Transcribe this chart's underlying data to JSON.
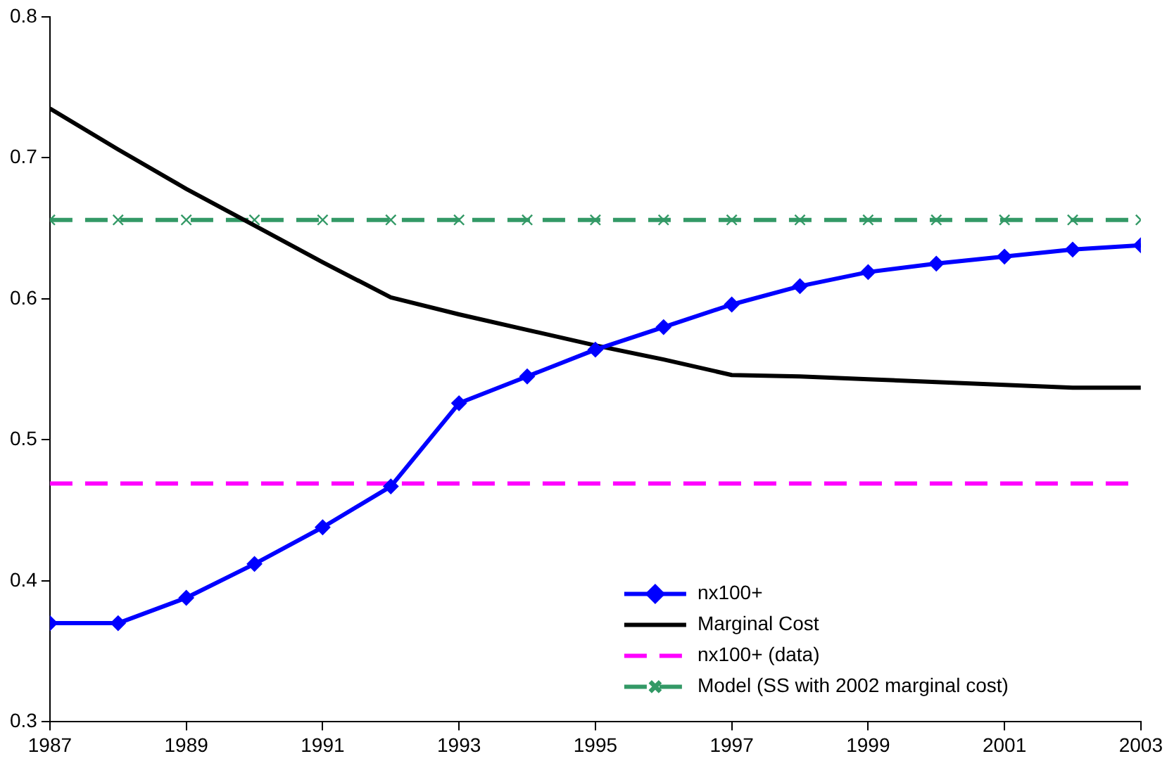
{
  "chart_data": {
    "type": "line",
    "x": [
      1987,
      1988,
      1989,
      1990,
      1991,
      1992,
      1993,
      1994,
      1995,
      1996,
      1997,
      1998,
      1999,
      2000,
      2001,
      2002,
      2003
    ],
    "xlim": [
      1987,
      2003
    ],
    "xticks": [
      1987,
      1989,
      1991,
      1993,
      1995,
      1997,
      1999,
      2001,
      2003
    ],
    "ylim": [
      0.3,
      0.8
    ],
    "yticks": [
      0.3,
      0.4,
      0.5,
      0.6,
      0.7,
      0.8
    ],
    "grid": false,
    "legend": "bottom right",
    "series": [
      {
        "name": "nx100+",
        "color": "#0000ff",
        "marker": "diamond",
        "line_style": "solid",
        "values": [
          0.37,
          0.37,
          0.388,
          0.412,
          0.438,
          0.467,
          0.526,
          0.545,
          0.564,
          0.58,
          0.596,
          0.609,
          0.619,
          0.625,
          0.63,
          0.635,
          0.638
        ]
      },
      {
        "name": "Marginal Cost",
        "color": "#000000",
        "marker": "none",
        "line_style": "solid",
        "values": [
          0.735,
          0.706,
          0.678,
          0.652,
          0.626,
          0.601,
          0.589,
          0.578,
          0.567,
          0.557,
          0.546,
          0.545,
          0.543,
          0.541,
          0.539,
          0.537,
          0.537
        ]
      },
      {
        "name": "nx100+ (data)",
        "color": "#ff00ff",
        "marker": "none",
        "line_style": "dashed",
        "x": [
          1987,
          2003
        ],
        "values": [
          0.469,
          0.469
        ]
      },
      {
        "name": "Model (SS with 2002 marginal cost)",
        "color": "#339966",
        "marker": "cross",
        "line_style": "dashed",
        "values": [
          0.656,
          0.656,
          0.656,
          0.656,
          0.656,
          0.656,
          0.656,
          0.656,
          0.656,
          0.656,
          0.656,
          0.656,
          0.656,
          0.656,
          0.656,
          0.656,
          0.656
        ]
      }
    ]
  }
}
